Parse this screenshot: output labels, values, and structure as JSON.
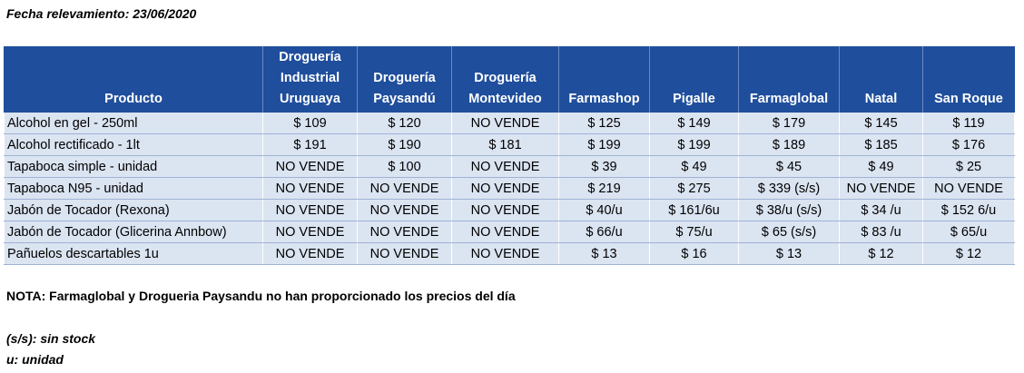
{
  "date_line": "Fecha relevamiento: 23/06/2020",
  "table": {
    "headers": [
      "Producto",
      "Droguería Industrial Uruguaya",
      "Droguería Paysandú",
      "Droguería Montevideo",
      "Farmashop",
      "Pigalle",
      "Farmaglobal",
      "Natal",
      "San Roque"
    ],
    "rows": [
      [
        "Alcohol en gel  - 250ml",
        "$ 109",
        "$ 120",
        "NO VENDE",
        "$ 125",
        "$ 149",
        "$ 179",
        "$ 145",
        "$ 119"
      ],
      [
        "Alcohol rectificado - 1lt",
        "$ 191",
        "$ 190",
        "$ 181",
        "$ 199",
        "$ 199",
        "$ 189",
        "$ 185",
        "$ 176"
      ],
      [
        "Tapaboca simple - unidad",
        "NO VENDE",
        "$ 100",
        "NO VENDE",
        "$ 39",
        "$ 49",
        "$ 45",
        "$ 49",
        "$ 25"
      ],
      [
        "Tapaboca N95 - unidad",
        "NO VENDE",
        "NO VENDE",
        "NO VENDE",
        "$ 219",
        "$ 275",
        "$ 339 (s/s)",
        "NO VENDE",
        "NO VENDE"
      ],
      [
        "Jabón de Tocador (Rexona)",
        "NO VENDE",
        "NO VENDE",
        "NO VENDE",
        "$ 40/u",
        "$ 161/6u",
        "$ 38/u (s/s)",
        "$ 34 /u",
        "$ 152 6/u"
      ],
      [
        "Jabón de Tocador (Glicerina Annbow)",
        "NO VENDE",
        "NO VENDE",
        "NO VENDE",
        "$ 66/u",
        "$ 75/u",
        "$ 65 (s/s)",
        "$ 83 /u",
        "$ 65/u"
      ],
      [
        "Pañuelos descartables 1u",
        "NO VENDE",
        "NO VENDE",
        "NO VENDE",
        "$ 13",
        "$ 16",
        "$ 13",
        "$ 12",
        "$ 12"
      ]
    ]
  },
  "note": "NOTA: Farmaglobal y Drogueria Paysandu no han proporcionado los precios del día",
  "legend": [
    "(s/s): sin stock",
    "u: unidad"
  ],
  "colors": {
    "header_bg": "#1f4e9c",
    "row_bg": "#dbe4f1"
  }
}
